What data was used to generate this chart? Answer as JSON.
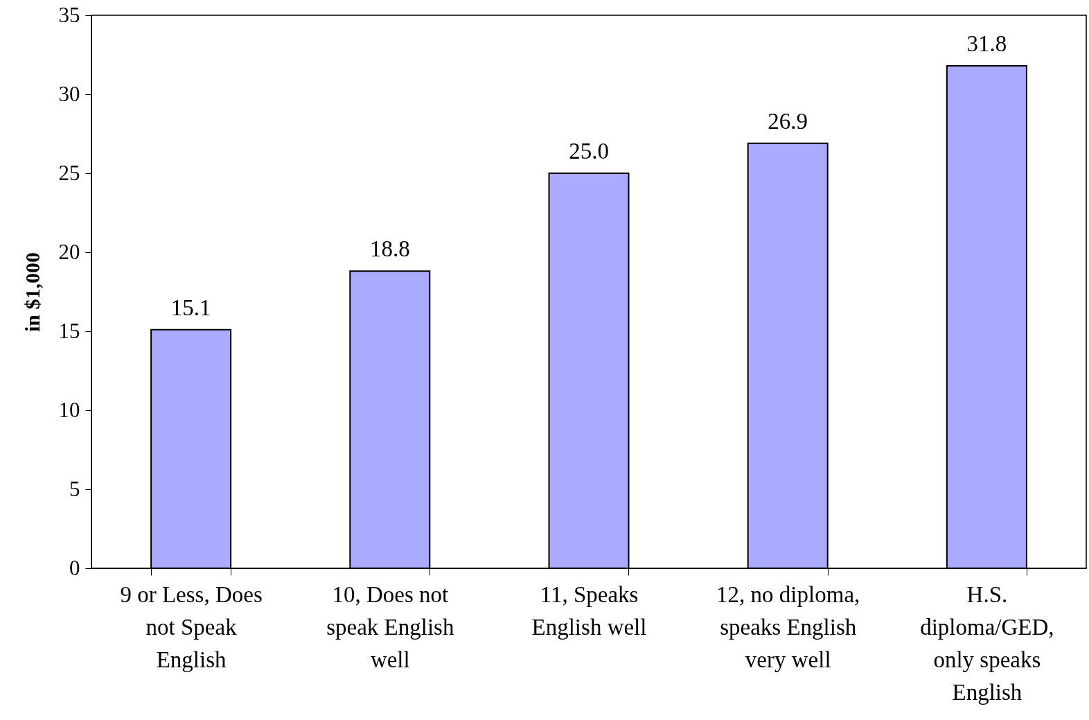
{
  "chart_data": {
    "type": "bar",
    "ylabel": "in $1,000",
    "categories": [
      "9 or Less, Does not Speak English",
      "10, Does not speak English well",
      "11, Speaks English well",
      "12, no diploma, speaks English very well",
      "H.S. diploma/GED, only speaks English"
    ],
    "values": [
      15.1,
      18.8,
      25.0,
      26.9,
      31.8
    ],
    "value_labels": [
      "15.1",
      "18.8",
      "25.0",
      "26.9",
      "31.8"
    ],
    "color": "#aaaaff",
    "ylim": [
      0,
      35
    ],
    "yticks": [
      0,
      5,
      10,
      15,
      20,
      25,
      30,
      35
    ],
    "grid": false
  }
}
